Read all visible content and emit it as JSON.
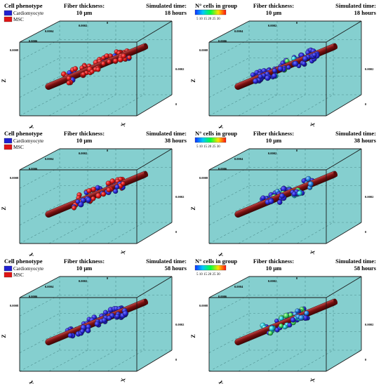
{
  "labels": {
    "cell_phenotype": "Cell phenotype",
    "cardiomyocyte": "Cardiomyocyte",
    "msc": "MSC",
    "cells_in_group": "N° cells in group",
    "fiber_thickness": "Fiber thickness:",
    "fiber_value": "10 μm",
    "simulated_time": "Simulated time:",
    "axis_x": "X",
    "axis_y": "Y",
    "axis_z": "Z",
    "tick_0": "0",
    "tick_0002": "0.0002",
    "tick_0004": "0.0004",
    "tick_0006": "0.0006",
    "tick_0008": "0.0008",
    "colorbar_ticks": "5  10 15 20 25 30"
  },
  "panels": [
    {
      "id": "p1",
      "legend": "phenotype",
      "time": "18 hours",
      "cells": "phenotype",
      "spread": "wide",
      "mix": 0.1
    },
    {
      "id": "p2",
      "legend": "group",
      "time": "18 hours",
      "cells": "group",
      "spread": "wide",
      "level": 0.05
    },
    {
      "id": "p3",
      "legend": "phenotype",
      "time": "38 hours",
      "cells": "phenotype",
      "spread": "mid",
      "mix": 0.45
    },
    {
      "id": "p4",
      "legend": "group",
      "time": "38 hours",
      "cells": "group",
      "spread": "mid",
      "level": 0.3
    },
    {
      "id": "p5",
      "legend": "phenotype",
      "time": "58 hours",
      "cells": "phenotype",
      "spread": "mid",
      "mix": 0.95
    },
    {
      "id": "p6",
      "legend": "group",
      "time": "58 hours",
      "cells": "group",
      "spread": "tight",
      "level": 0.55
    }
  ],
  "colors": {
    "box_fill": "#85cfcf",
    "box_edge": "#1a1a1a",
    "grid": "#4f8f8f",
    "fiber": "#7a1010",
    "fiber_highlight": "#b33a3a",
    "cardiomyocyte": "#2020d0",
    "msc": "#e01515",
    "background": "#ffffff"
  }
}
